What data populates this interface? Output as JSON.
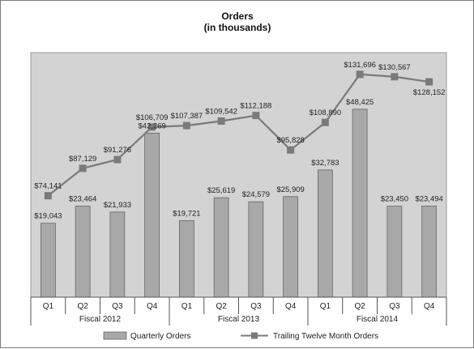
{
  "chart_data": {
    "type": "bar",
    "title": "Orders",
    "subtitle": "(in thousands)",
    "categories": [
      "Q1",
      "Q2",
      "Q3",
      "Q4",
      "Q1",
      "Q2",
      "Q3",
      "Q4",
      "Q1",
      "Q2",
      "Q3",
      "Q4"
    ],
    "groups": [
      "Fiscal 2012",
      "Fiscal 2013",
      "Fiscal 2014"
    ],
    "series": [
      {
        "name": "Quarterly Orders",
        "type": "bar",
        "values": [
          19043,
          23464,
          21933,
          42269,
          19721,
          25619,
          24579,
          25909,
          32783,
          48425,
          23450,
          23494
        ],
        "labels": [
          "$19,043",
          "$23,464",
          "$21,933",
          "$42,269",
          "$19,721",
          "$25,619",
          "$24,579",
          "$25,909",
          "$32,783",
          "$48,425",
          "$23,450",
          "$23,494"
        ],
        "color": "#a8a8a8"
      },
      {
        "name": "Trailing Twelve Month Orders",
        "type": "line",
        "values": [
          74141,
          87129,
          91276,
          106709,
          107387,
          109542,
          112188,
          95828,
          108890,
          131696,
          130567,
          128152
        ],
        "labels": [
          "$74,141",
          "$87,129",
          "$91,276",
          "$106,709",
          "$107,387",
          "$109,542",
          "$112,188",
          "$95,828",
          "$108,890",
          "$131,696",
          "$130,567",
          "$128,152"
        ],
        "color": "#7a7a7a"
      }
    ],
    "bar_axis_max": 63000,
    "line_axis_range": [
      26000,
      142000
    ],
    "plot_background": "#d3d3d3",
    "legend_position": "bottom"
  }
}
